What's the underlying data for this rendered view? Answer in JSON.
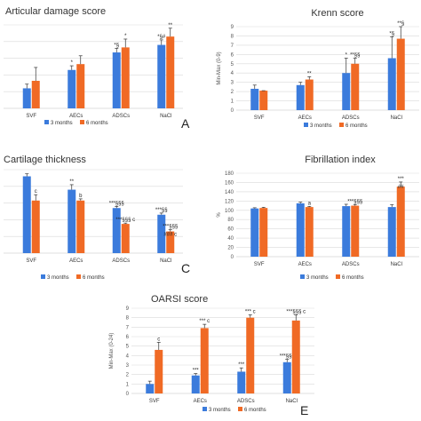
{
  "chart_data": [
    {
      "type": "bar",
      "panel_letter": "A",
      "title": "Articular damage score",
      "ylabel": "",
      "ylim": [
        0,
        10
      ],
      "yticks": [],
      "grid": true,
      "legend_position": "bottom",
      "categories": [
        "SVF",
        "AECs",
        "ADSCs",
        "NaCl"
      ],
      "series": [
        {
          "name": "3 months",
          "color": "#3b7bdc",
          "values": [
            2.4,
            4.6,
            6.7,
            7.6
          ],
          "errors": [
            0.5,
            0.5,
            0.5,
            0.6
          ]
        },
        {
          "name": "6 months",
          "color": "#f06a25",
          "values": [
            3.3,
            5.3,
            7.3,
            8.6
          ],
          "errors": [
            1.6,
            1.0,
            1.0,
            1.0
          ]
        }
      ],
      "annotations": [
        [
          "",
          ""
        ],
        [
          "*",
          ""
        ],
        [
          "*§",
          "*"
        ],
        [
          "*§#",
          "**"
        ]
      ]
    },
    {
      "type": "bar",
      "panel_letter": "A",
      "title": "Krenn score",
      "ylabel": "Min-Max (0-9)",
      "ylim": [
        0,
        9
      ],
      "yticks": [
        "0",
        "1",
        "2",
        "3",
        "4",
        "5",
        "6",
        "7",
        "8",
        "9"
      ],
      "grid": true,
      "legend_position": "bottom",
      "categories": [
        "SVF",
        "AECs",
        "ADSCs",
        "NaCl"
      ],
      "series": [
        {
          "name": "3 months",
          "color": "#3b7bdc",
          "values": [
            2.3,
            2.7,
            4.0,
            5.6
          ],
          "errors": [
            0.4,
            0.3,
            1.6,
            2.3
          ]
        },
        {
          "name": "6 months",
          "color": "#f06a25",
          "values": [
            2.1,
            3.3,
            5.0,
            7.7
          ],
          "errors": [
            0.0,
            0.3,
            0.6,
            1.3
          ]
        }
      ],
      "annotations": [
        [
          "",
          ""
        ],
        [
          "",
          "**"
        ],
        [
          "*",
          "**§§"
        ],
        [
          "*§",
          "**§"
        ]
      ]
    },
    {
      "type": "bar",
      "panel_letter": "C",
      "title": "Cartilage thickness",
      "ylabel": "",
      "ylim": [
        0,
        10
      ],
      "yticks": [],
      "grid": true,
      "legend_position": "bottom",
      "categories": [
        "SVF",
        "AECs",
        "ADSCs",
        "NaCl"
      ],
      "series": [
        {
          "name": "3 months",
          "color": "#3b7bdc",
          "values": [
            9.2,
            7.6,
            5.4,
            4.6
          ],
          "errors": [
            0.3,
            0.6,
            0.2,
            0.2
          ]
        },
        {
          "name": "6 months",
          "color": "#f06a25",
          "values": [
            6.3,
            6.3,
            3.5,
            2.6
          ],
          "errors": [
            0.7,
            0.2,
            0.1,
            0.2
          ]
        }
      ],
      "annotations": [
        [
          "",
          "c"
        ],
        [
          "**",
          "b"
        ],
        [
          "***§§§",
          "***§§§ c"
        ],
        [
          "***§§",
          "***§§§"
        ]
      ],
      "extra_annotations": [
        {
          "category": 3,
          "series": 1,
          "text": "### c"
        }
      ]
    },
    {
      "type": "bar",
      "panel_letter": "C",
      "title": "Fibrillation index",
      "ylabel": "%",
      "ylim": [
        0,
        180
      ],
      "yticks": [
        "0",
        "20",
        "40",
        "60",
        "80",
        "100",
        "120",
        "140",
        "160",
        "180"
      ],
      "grid": true,
      "legend_position": "bottom",
      "categories": [
        "SVF",
        "AECs",
        "ADSCs",
        "NaCl"
      ],
      "series": [
        {
          "name": "3 months",
          "color": "#3b7bdc",
          "values": [
            104,
            115,
            109,
            107
          ],
          "errors": [
            1.5,
            2.5,
            4,
            5
          ]
        },
        {
          "name": "6 months",
          "color": "#f06a25",
          "values": [
            105,
            107,
            110,
            151
          ],
          "errors": [
            1.5,
            1.5,
            2.5,
            10
          ]
        }
      ],
      "annotations": [
        [
          "",
          ""
        ],
        [
          "",
          "a"
        ],
        [
          "",
          "***§§§"
        ],
        [
          "",
          "***"
        ]
      ],
      "extra_annotations": [
        {
          "category": 3,
          "series": 1,
          "text": "##"
        }
      ]
    },
    {
      "type": "bar",
      "panel_letter": "E",
      "title": "OARSI score",
      "ylabel": "Min-Max (0-24)",
      "ylim": [
        0,
        9
      ],
      "yticks": [
        "0",
        "1",
        "2",
        "3",
        "4",
        "5",
        "6",
        "7",
        "8",
        "9"
      ],
      "grid": true,
      "legend_position": "bottom",
      "categories": [
        "SVF",
        "AECs",
        "ADSCs",
        "NaCl"
      ],
      "series": [
        {
          "name": "3 months",
          "color": "#3b7bdc",
          "values": [
            1.0,
            1.9,
            2.3,
            3.3
          ],
          "errors": [
            0.3,
            0.2,
            0.4,
            0.3
          ]
        },
        {
          "name": "6 months",
          "color": "#f06a25",
          "values": [
            4.6,
            6.9,
            8.0,
            7.7
          ],
          "errors": [
            0.8,
            0.4,
            0.3,
            0.6
          ]
        }
      ],
      "annotations": [
        [
          "",
          "c"
        ],
        [
          "***",
          "*** c"
        ],
        [
          "***",
          "*** c"
        ],
        [
          "***§§§",
          "***§§§ c"
        ]
      ]
    }
  ]
}
